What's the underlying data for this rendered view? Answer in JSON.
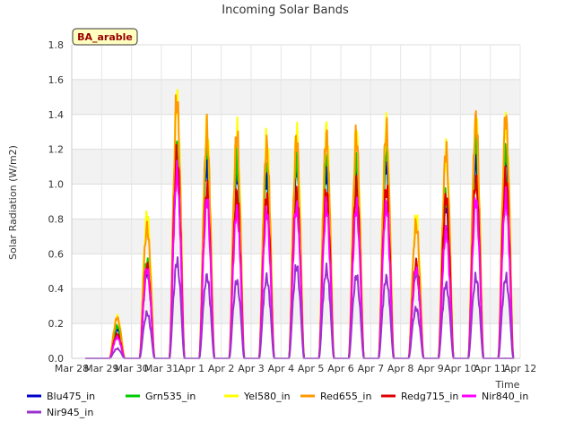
{
  "chart_data": {
    "type": "line",
    "title": "Incoming Solar Bands",
    "xlabel": "Time",
    "ylabel": "Solar Radiation (W/m2)",
    "site_label": "BA_arable",
    "ylim": [
      0.0,
      1.8
    ],
    "yticks": [
      "0.0",
      "0.2",
      "0.4",
      "0.6",
      "0.8",
      "1.0",
      "1.2",
      "1.4",
      "1.6",
      "1.8"
    ],
    "xticks": [
      "Mar 28",
      "Mar 29",
      "Mar 30",
      "Mar 31",
      "Apr 1",
      "Apr 2",
      "Apr 3",
      "Apr 4",
      "Apr 5",
      "Apr 6",
      "Apr 7",
      "Apr 8",
      "Apr 9",
      "Apr 10",
      "Apr 11",
      "Apr 12"
    ],
    "x_start": "2025-03-28",
    "grid": true,
    "legend_position": "bottom",
    "days": [
      "Mar 29",
      "Mar 30",
      "Mar 31",
      "Apr 1",
      "Apr 2",
      "Apr 3",
      "Apr 4",
      "Apr 5",
      "Apr 6",
      "Apr 7",
      "Apr 8",
      "Apr 9",
      "Apr 10",
      "Apr 11"
    ],
    "series": [
      {
        "name": "Blu475_in",
        "color": "#0000cc",
        "daily_peak": [
          0.18,
          0.55,
          1.2,
          1.2,
          1.15,
          1.12,
          1.2,
          1.15,
          1.15,
          1.2,
          0.55,
          0.95,
          1.25,
          1.25
        ]
      },
      {
        "name": "Grn535_in",
        "color": "#00cc00",
        "daily_peak": [
          0.2,
          0.6,
          1.3,
          1.3,
          1.22,
          1.22,
          1.24,
          1.25,
          1.24,
          1.3,
          0.55,
          1.0,
          1.35,
          1.3
        ]
      },
      {
        "name": "Yel580_in",
        "color": "#ffff00",
        "daily_peak": [
          0.26,
          0.89,
          1.62,
          1.42,
          1.41,
          1.37,
          1.41,
          1.42,
          1.4,
          1.43,
          0.88,
          1.28,
          1.48,
          1.48
        ]
      },
      {
        "name": "Red655_in",
        "color": "#ff9900",
        "daily_peak": [
          0.25,
          0.81,
          1.6,
          1.4,
          1.38,
          1.32,
          1.35,
          1.38,
          1.37,
          1.41,
          0.83,
          1.29,
          1.49,
          1.49
        ]
      },
      {
        "name": "Redg715_in",
        "color": "#dd0000",
        "daily_peak": [
          0.15,
          0.57,
          1.25,
          1.04,
          1.02,
          1.0,
          1.02,
          1.03,
          1.05,
          1.05,
          0.59,
          1.0,
          1.11,
          1.13
        ]
      },
      {
        "name": "Nir840_in",
        "color": "#ff00ff",
        "daily_peak": [
          0.13,
          0.55,
          1.15,
          0.98,
          0.92,
          0.91,
          0.94,
          0.94,
          0.94,
          0.95,
          0.55,
          0.79,
          0.98,
          0.99
        ]
      },
      {
        "name": "Nir945_in",
        "color": "#9933cc",
        "daily_peak": [
          0.06,
          0.28,
          0.6,
          0.51,
          0.48,
          0.5,
          0.57,
          0.55,
          0.51,
          0.5,
          0.31,
          0.46,
          0.5,
          0.5
        ]
      }
    ]
  }
}
